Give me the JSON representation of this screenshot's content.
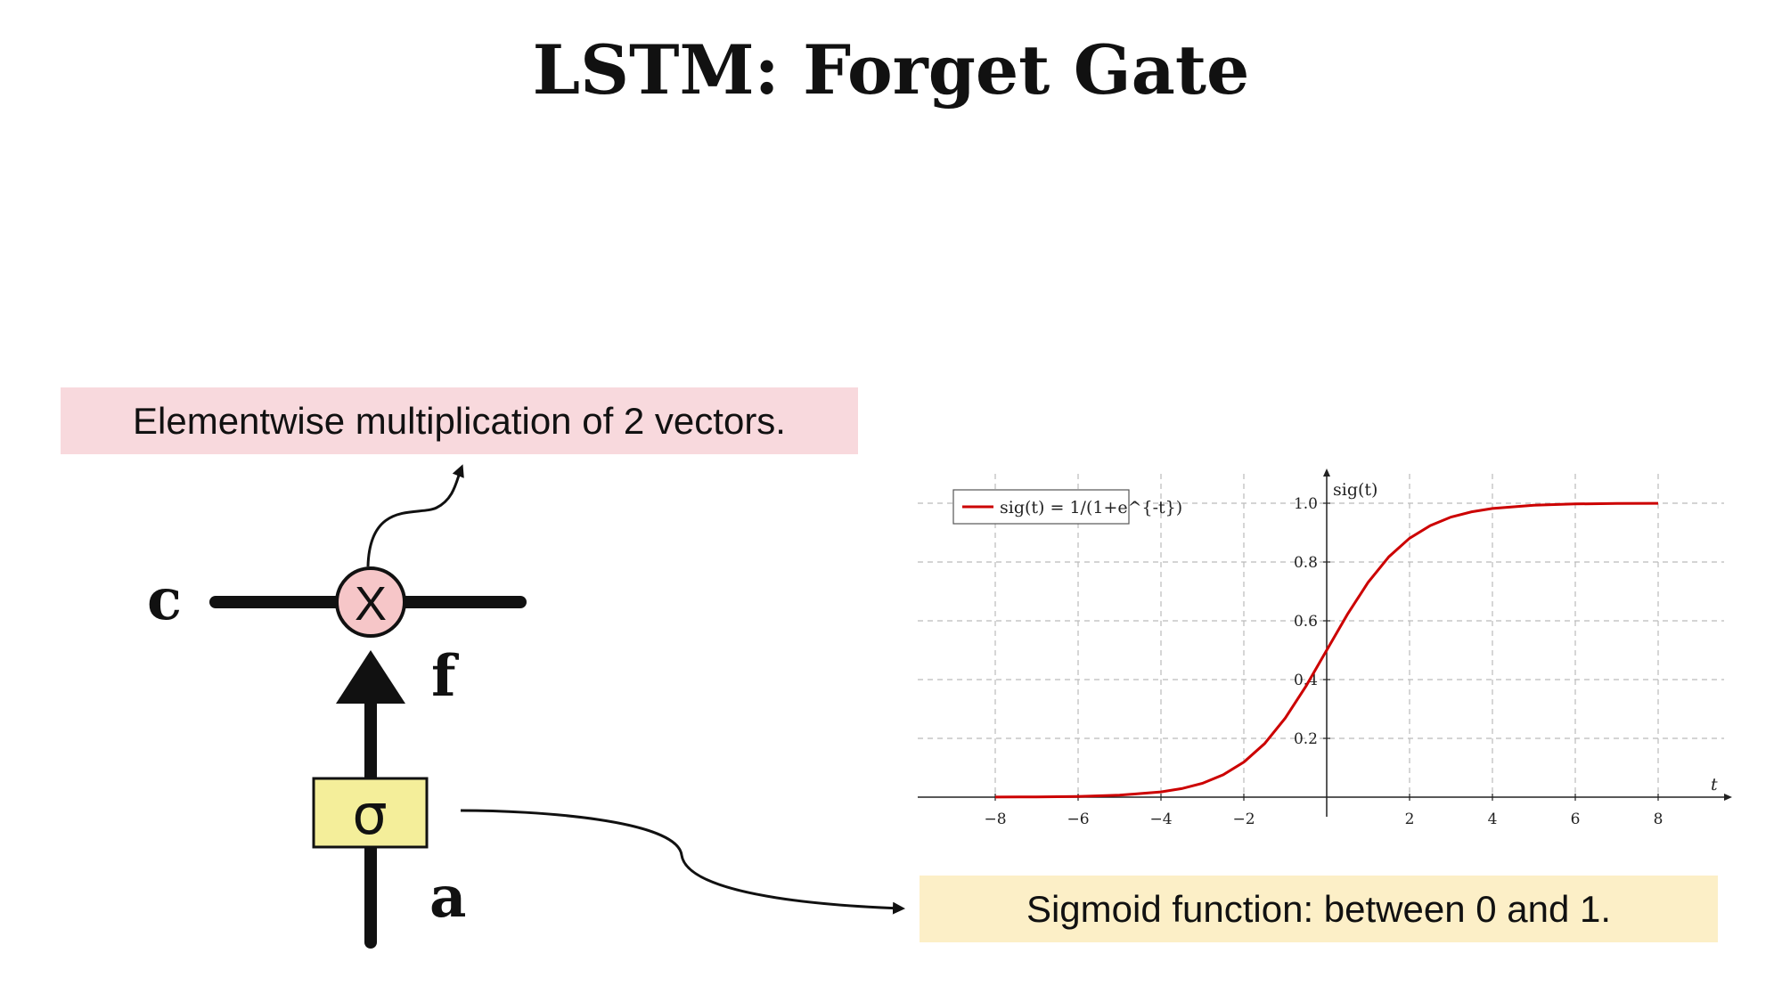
{
  "title": "LSTM: Forget Gate",
  "callouts": {
    "multiply": "Elementwise multiplication of 2 vectors.",
    "sigmoid": "Sigmoid function: between 0 and 1."
  },
  "diagram": {
    "cell_state_label": "c",
    "gate_output_label": "f",
    "input_label": "a",
    "multiply_symbol": "X",
    "sigmoid_symbol": "σ"
  },
  "colors": {
    "multiply_node_fill": "#f6c6c8",
    "sigmoid_box_fill": "#f4ee9a",
    "curve": "#cc0000",
    "callout_pink": "#f8d9dd",
    "callout_yellow": "#fcefc7"
  },
  "chart_data": {
    "type": "line",
    "function": "sigmoid",
    "series": [
      {
        "name": "sig(t) = 1/(1+e^{-t})",
        "x": [
          -8,
          -7,
          -6,
          -5,
          -4,
          -3.5,
          -3,
          -2.5,
          -2,
          -1.5,
          -1,
          -0.5,
          0,
          0.5,
          1,
          1.5,
          2,
          2.5,
          3,
          3.5,
          4,
          5,
          6,
          7,
          8
        ],
        "y": [
          0.0003,
          0.0009,
          0.0025,
          0.0067,
          0.018,
          0.029,
          0.047,
          0.076,
          0.119,
          0.182,
          0.269,
          0.378,
          0.5,
          0.622,
          0.731,
          0.818,
          0.881,
          0.924,
          0.953,
          0.971,
          0.982,
          0.993,
          0.9975,
          0.9991,
          0.9997
        ]
      }
    ],
    "xlabel": "t",
    "ylabel": "sig(t)",
    "x_ticks": [
      "−8",
      "−6",
      "−4",
      "−2",
      "2",
      "4",
      "6",
      "8"
    ],
    "y_ticks": [
      "0.2",
      "0.4",
      "0.6",
      "0.8",
      "1.0"
    ],
    "xlim": [
      -8,
      9.5
    ],
    "ylim": [
      0,
      1.1
    ],
    "grid": true,
    "legend": "top-left"
  }
}
